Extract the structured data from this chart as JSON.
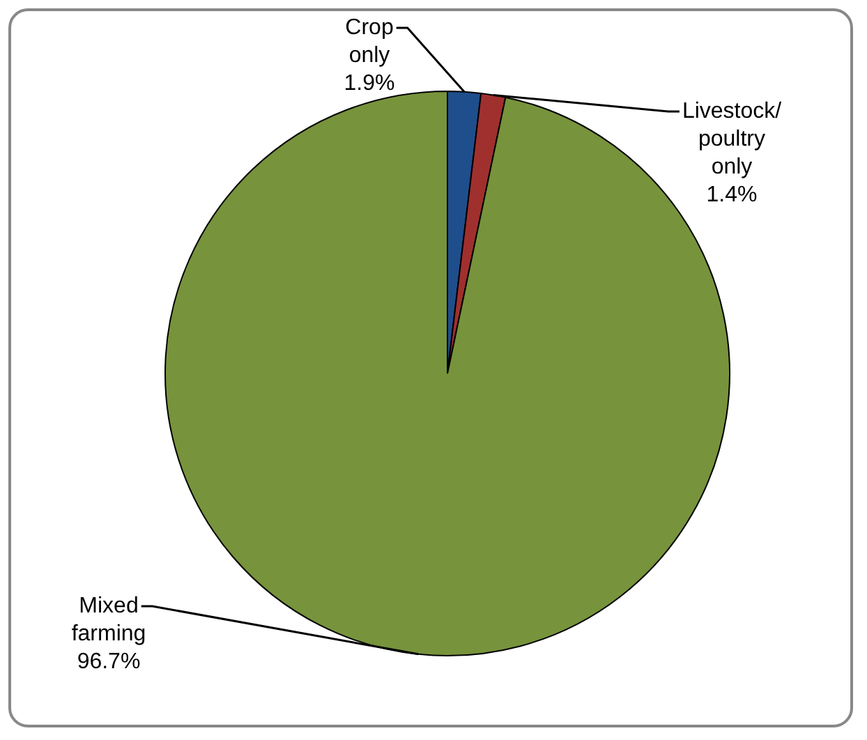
{
  "chart_data": {
    "type": "pie",
    "categories": [
      "Crop only",
      "Livestock/ poultry only",
      "Mixed farming"
    ],
    "values": [
      1.9,
      1.4,
      96.7
    ],
    "colors": [
      "#1f4e8c",
      "#a0302e",
      "#77933c"
    ],
    "value_labels": [
      "1.9%",
      "1.4%",
      "96.7%"
    ],
    "legend": false
  }
}
